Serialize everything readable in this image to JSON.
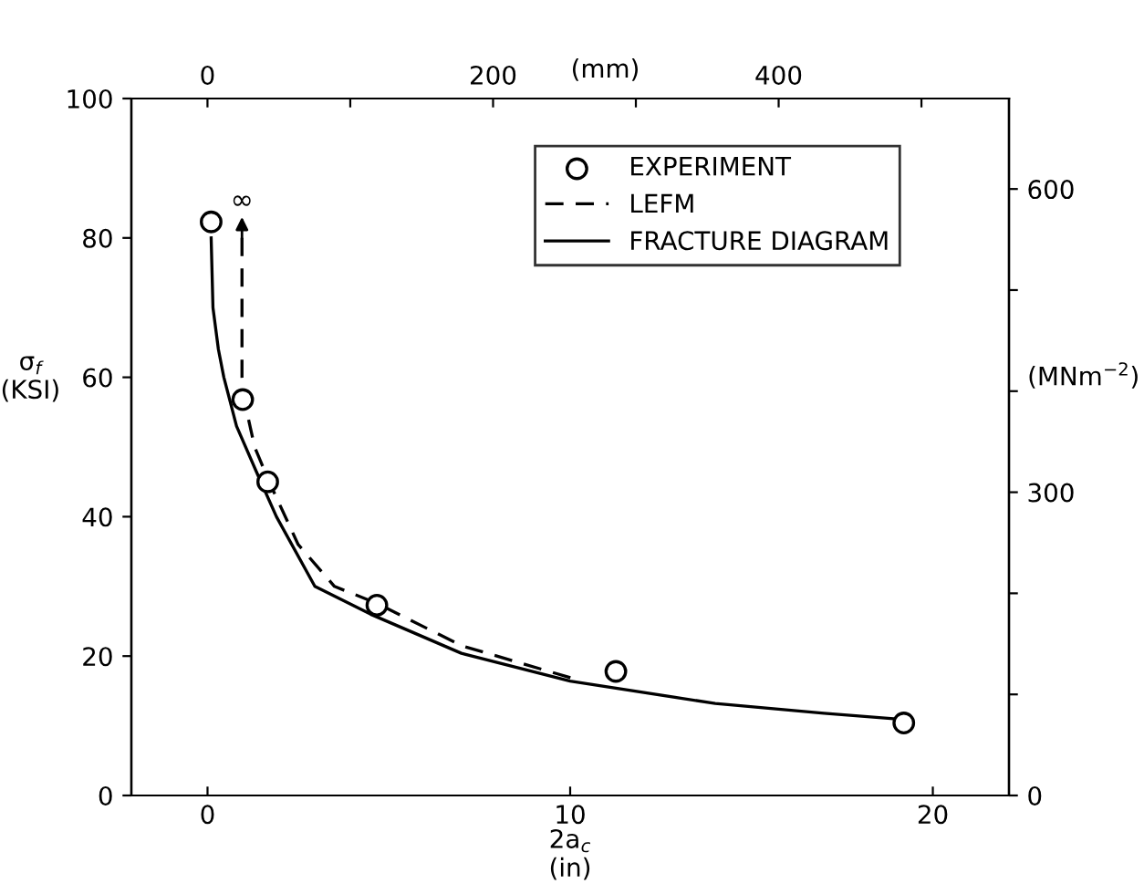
{
  "chart_data": {
    "type": "line",
    "xlabel": "2a$_{c}$\n(in)",
    "ylabel": "σ$_{f}$\n(KSI)",
    "y2label": "(MNm$^{−2}$)",
    "x2label": "(mm)",
    "xlim": [
      -2.1,
      22.1
    ],
    "xticks": [
      0,
      10,
      20
    ],
    "ylim": [
      0,
      100
    ],
    "yticks": [
      0,
      20,
      40,
      60,
      80,
      100
    ],
    "x2lim": [
      -53.3,
      561.3
    ],
    "x2ticks": [
      0,
      {
        "value": 100,
        "label": null
      },
      200,
      {
        "value": 300,
        "label": null
      },
      400,
      {
        "value": 500,
        "label": null
      }
    ],
    "y2lim": [
      0,
      689.5
    ],
    "y2ticks": [
      0,
      {
        "value": 100,
        "label": null
      },
      {
        "value": 200,
        "label": null
      },
      300,
      {
        "value": 400,
        "label": null
      },
      {
        "value": 500,
        "label": null
      },
      600
    ],
    "grid": false,
    "legend": "top right",
    "series": [
      {
        "name": "EXPERIMENT",
        "type": "scatter",
        "marker": "circle",
        "color": "#000000",
        "x": [
          0.1,
          0.97,
          1.66,
          4.67,
          11.26,
          19.2
        ],
        "values": [
          82.3,
          56.8,
          45,
          27.3,
          17.8,
          10.4
        ]
      },
      {
        "name": "LEFM",
        "line_style": "dashed",
        "color": "#000000",
        "x": [
          0.95,
          0.95,
          1.0,
          1.3,
          1.7,
          2.5,
          3.5,
          4.7,
          7,
          10.2
        ],
        "values": [
          80,
          60,
          57,
          50,
          45,
          36,
          30,
          27.5,
          21.5,
          16.6
        ]
      },
      {
        "name": "FRACTURE DIAGRAM",
        "line_style": "solid",
        "color": "#000000",
        "x": [
          0.1,
          0.15,
          0.3,
          0.45,
          0.8,
          1.36,
          1.9,
          2.96,
          4.5,
          7,
          10,
          14,
          17,
          19.2
        ],
        "values": [
          80,
          70,
          64,
          60,
          53,
          46.3,
          40,
          30,
          26,
          20.4,
          16.4,
          13.2,
          11.8,
          10.9
        ]
      }
    ],
    "annotations": [
      {
        "text": "∞",
        "x": 0.95,
        "y": 80
      }
    ]
  }
}
